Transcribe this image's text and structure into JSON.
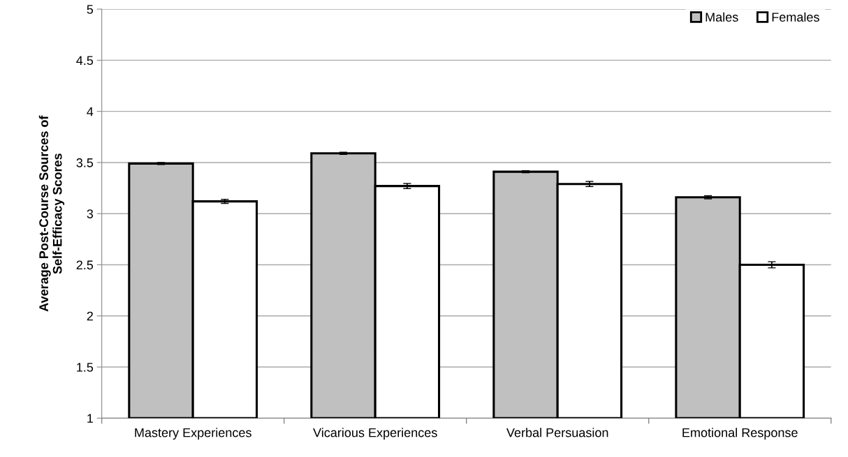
{
  "chart_data": {
    "type": "bar",
    "ylabel": "Average Post-Course Sources of\nSelf-Efficacy Scores",
    "categories": [
      "Mastery Experiences",
      "Vicarious Experiences",
      "Verbal Persuasion",
      "Emotional Response"
    ],
    "series": [
      {
        "name": "Males",
        "color": "#c0c0c0",
        "values": [
          3.49,
          3.59,
          3.41,
          3.16
        ],
        "errors": [
          0.01,
          0.01,
          0.01,
          0.015
        ]
      },
      {
        "name": "Females",
        "color": "#ffffff",
        "values": [
          3.12,
          3.27,
          3.29,
          2.5
        ],
        "errors": [
          0.02,
          0.025,
          0.025,
          0.03
        ]
      }
    ],
    "ylim": [
      1,
      5
    ],
    "yticks": [
      1,
      1.5,
      2,
      2.5,
      3,
      3.5,
      4,
      4.5,
      5
    ],
    "grid": "y",
    "legend": "top right"
  }
}
